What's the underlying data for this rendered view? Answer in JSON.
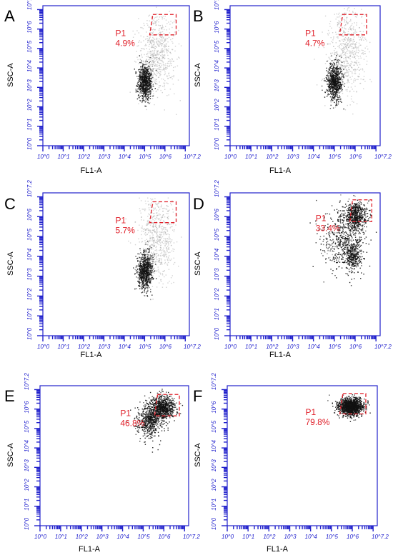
{
  "figure": {
    "colors": {
      "axis": "#2222cc",
      "gate": "#e0202a",
      "density_low": "#a8a8a8",
      "density_high": "#111111"
    }
  },
  "chart_data": [
    {
      "type": "scatter",
      "panel": "A",
      "xlabel": "FL1-A",
      "ylabel": "SSC-A",
      "xscale": "log",
      "yscale": "log",
      "xlim": [
        1,
        15848932
      ],
      "ylim": [
        1,
        15848932
      ],
      "x_tick_labels": [
        "10^0",
        "10^1",
        "10^2",
        "10^3",
        "10^4",
        "10^5",
        "10^6",
        "10^7.2"
      ],
      "y_tick_labels": [
        "10^0",
        "10^1",
        "10^2",
        "10^3",
        "10^4",
        "10^5",
        "10^6",
        "10^7.2"
      ],
      "gate": {
        "name": "P1",
        "percent": "4.9%",
        "x_log_range": [
          5.25,
          6.55
        ],
        "y_log_range": [
          5.7,
          6.75
        ]
      },
      "clusters": [
        {
          "x_log_center": 5.0,
          "y_log_center": 3.3,
          "x_log_sd": 0.18,
          "y_log_sd": 0.45,
          "weight": 0.55,
          "shade": "dark"
        },
        {
          "x_log_center": 5.6,
          "y_log_center": 4.8,
          "x_log_sd": 0.45,
          "y_log_sd": 1.1,
          "weight": 0.45,
          "shade": "light"
        }
      ]
    },
    {
      "type": "scatter",
      "panel": "B",
      "xlabel": "FL1-A",
      "ylabel": "SSC-A",
      "xscale": "log",
      "yscale": "log",
      "xlim": [
        1,
        15848932
      ],
      "ylim": [
        1,
        15848932
      ],
      "x_tick_labels": [
        "10^0",
        "10^1",
        "10^2",
        "10^3",
        "10^4",
        "10^5",
        "10^6",
        "10^7.2"
      ],
      "y_tick_labels": [
        "10^0",
        "10^1",
        "10^2",
        "10^3",
        "10^4",
        "10^5",
        "10^6",
        "10^7.2"
      ],
      "gate": {
        "name": "P1",
        "percent": "4.7%",
        "x_log_range": [
          5.25,
          6.55
        ],
        "y_log_range": [
          5.7,
          6.75
        ]
      },
      "clusters": [
        {
          "x_log_center": 5.0,
          "y_log_center": 3.3,
          "x_log_sd": 0.18,
          "y_log_sd": 0.45,
          "weight": 0.55,
          "shade": "dark"
        },
        {
          "x_log_center": 5.6,
          "y_log_center": 4.8,
          "x_log_sd": 0.45,
          "y_log_sd": 1.1,
          "weight": 0.45,
          "shade": "light"
        }
      ]
    },
    {
      "type": "scatter",
      "panel": "C",
      "xlabel": "FL1-A",
      "ylabel": "SSC-A",
      "xscale": "log",
      "yscale": "log",
      "xlim": [
        1,
        15848932
      ],
      "ylim": [
        1,
        15848932
      ],
      "x_tick_labels": [
        "10^0",
        "10^1",
        "10^2",
        "10^3",
        "10^4",
        "10^5",
        "10^6",
        "10^7.2"
      ],
      "y_tick_labels": [
        "10^0",
        "10^1",
        "10^2",
        "10^3",
        "10^4",
        "10^5",
        "10^6",
        "10^7.2"
      ],
      "gate": {
        "name": "P1",
        "percent": "5.7%",
        "x_log_range": [
          5.25,
          6.55
        ],
        "y_log_range": [
          5.7,
          6.75
        ]
      },
      "clusters": [
        {
          "x_log_center": 5.0,
          "y_log_center": 3.3,
          "x_log_sd": 0.18,
          "y_log_sd": 0.45,
          "weight": 0.55,
          "shade": "dark"
        },
        {
          "x_log_center": 5.6,
          "y_log_center": 4.9,
          "x_log_sd": 0.45,
          "y_log_sd": 1.1,
          "weight": 0.45,
          "shade": "light"
        }
      ]
    },
    {
      "type": "scatter",
      "panel": "D",
      "xlabel": "FL1-A",
      "ylabel": "SSC-A",
      "xscale": "log",
      "yscale": "log",
      "xlim": [
        1,
        15848932
      ],
      "ylim": [
        1,
        15848932
      ],
      "x_tick_labels": [
        "10^0",
        "10^1",
        "10^2",
        "10^3",
        "10^4",
        "10^5",
        "10^6",
        "10^7.2"
      ],
      "y_tick_labels": [
        "10^0",
        "10^1",
        "10^2",
        "10^3",
        "10^4",
        "10^5",
        "10^6",
        "10^7.2"
      ],
      "gate": {
        "name": "P1",
        "percent": "33.4%",
        "x_log_range": [
          5.75,
          6.8
        ],
        "y_log_range": [
          5.75,
          6.85
        ]
      },
      "clusters": [
        {
          "x_log_center": 6.0,
          "y_log_center": 6.1,
          "x_log_sd": 0.22,
          "y_log_sd": 0.35,
          "weight": 0.4,
          "shade": "dark"
        },
        {
          "x_log_center": 5.9,
          "y_log_center": 4.0,
          "x_log_sd": 0.18,
          "y_log_sd": 0.35,
          "weight": 0.2,
          "shade": "dark"
        },
        {
          "x_log_center": 5.4,
          "y_log_center": 4.9,
          "x_log_sd": 0.5,
          "y_log_sd": 0.8,
          "weight": 0.4,
          "shade": "dark"
        }
      ]
    },
    {
      "type": "scatter",
      "panel": "E",
      "xlabel": "FL1-A",
      "ylabel": "SSC-A",
      "xscale": "log",
      "yscale": "log",
      "xlim": [
        1,
        15848932
      ],
      "ylim": [
        1,
        15848932
      ],
      "x_tick_labels": [
        "10^0",
        "10^1",
        "10^2",
        "10^3",
        "10^4",
        "10^5",
        "10^6",
        "10^7.2"
      ],
      "y_tick_labels": [
        "10^0",
        "10^1",
        "10^2",
        "10^3",
        "10^4",
        "10^5",
        "10^6",
        "10^7.2"
      ],
      "gate": {
        "name": "P1",
        "percent": "46.8%",
        "x_log_range": [
          5.55,
          6.75
        ],
        "y_log_range": [
          5.65,
          6.75
        ]
      },
      "clusters": [
        {
          "x_log_center": 5.9,
          "y_log_center": 6.1,
          "x_log_sd": 0.3,
          "y_log_sd": 0.3,
          "weight": 0.6,
          "shade": "dark"
        },
        {
          "x_log_center": 5.3,
          "y_log_center": 5.4,
          "x_log_sd": 0.3,
          "y_log_sd": 0.4,
          "weight": 0.4,
          "shade": "dark"
        }
      ]
    },
    {
      "type": "scatter",
      "panel": "F",
      "xlabel": "FL1-A",
      "ylabel": "SSC-A",
      "xscale": "log",
      "yscale": "log",
      "xlim": [
        1,
        15848932
      ],
      "ylim": [
        1,
        15848932
      ],
      "x_tick_labels": [
        "10^0",
        "10^1",
        "10^2",
        "10^3",
        "10^4",
        "10^5",
        "10^6",
        "10^7.2"
      ],
      "y_tick_labels": [
        "10^0",
        "10^1",
        "10^2",
        "10^3",
        "10^4",
        "10^5",
        "10^6",
        "10^7.2"
      ],
      "gate": {
        "name": "P1",
        "percent": "79.8%",
        "x_log_range": [
          5.4,
          6.65
        ],
        "y_log_range": [
          5.75,
          6.8
        ]
      },
      "clusters": [
        {
          "x_log_center": 5.9,
          "y_log_center": 6.15,
          "x_log_sd": 0.3,
          "y_log_sd": 0.22,
          "weight": 1.0,
          "shade": "dark"
        }
      ]
    }
  ]
}
